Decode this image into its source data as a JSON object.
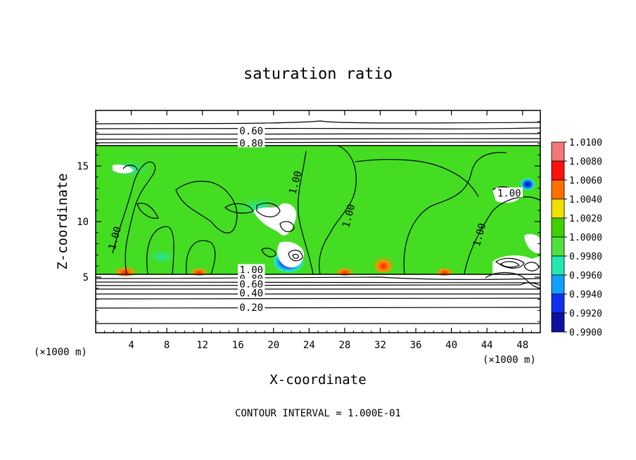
{
  "chart_data": {
    "type": "heatmap",
    "title": "saturation ratio",
    "xlabel": "X-coordinate",
    "ylabel": "Z-coordinate",
    "x_unit_left": "(×1000 m)",
    "x_unit_right": "(×1000 m)",
    "xlim": [
      0,
      50
    ],
    "ylim": [
      0,
      20
    ],
    "x_ticks": [
      4,
      8,
      12,
      16,
      20,
      24,
      28,
      32,
      36,
      40,
      44,
      48
    ],
    "y_ticks": [
      5,
      10,
      15
    ],
    "footer": "CONTOUR INTERVAL = 1.000E-01",
    "contour_labels": [
      {
        "text": "0.60",
        "x": 17.5,
        "y": 18.1
      },
      {
        "text": "0.80",
        "x": 17.5,
        "y": 17.0
      },
      {
        "text": "1.00",
        "x": 2.2,
        "y": 8.5
      },
      {
        "text": "1.00",
        "x": 22.5,
        "y": 13.5
      },
      {
        "text": "1.00",
        "x": 28.5,
        "y": 10.5
      },
      {
        "text": "1.00",
        "x": 43.2,
        "y": 8.8
      },
      {
        "text": "1.00",
        "x": 46.5,
        "y": 12.5
      },
      {
        "text": "1.00",
        "x": 17.5,
        "y": 5.6
      },
      {
        "text": "0.80",
        "x": 17.5,
        "y": 4.8
      },
      {
        "text": "0.60",
        "x": 17.5,
        "y": 4.3
      },
      {
        "text": "0.40",
        "x": 17.5,
        "y": 3.5
      },
      {
        "text": "0.20",
        "x": 17.5,
        "y": 2.2
      }
    ],
    "colorbar": {
      "levels": [
        "1.0100",
        "1.0080",
        "1.0060",
        "1.0040",
        "1.0020",
        "1.0000",
        "0.9980",
        "0.9960",
        "0.9940",
        "0.9920",
        "0.9900"
      ],
      "colors": [
        "#f07878",
        "#ff1010",
        "#ff7000",
        "#f0e000",
        "#40d000",
        "#50e040",
        "#20e8b0",
        "#10a0ff",
        "#1030f0",
        "#1010a0"
      ]
    },
    "colors": {
      "saturated_band": "#44dd22",
      "subsaturated": "#ffffff",
      "contour_line": "#000000"
    }
  }
}
